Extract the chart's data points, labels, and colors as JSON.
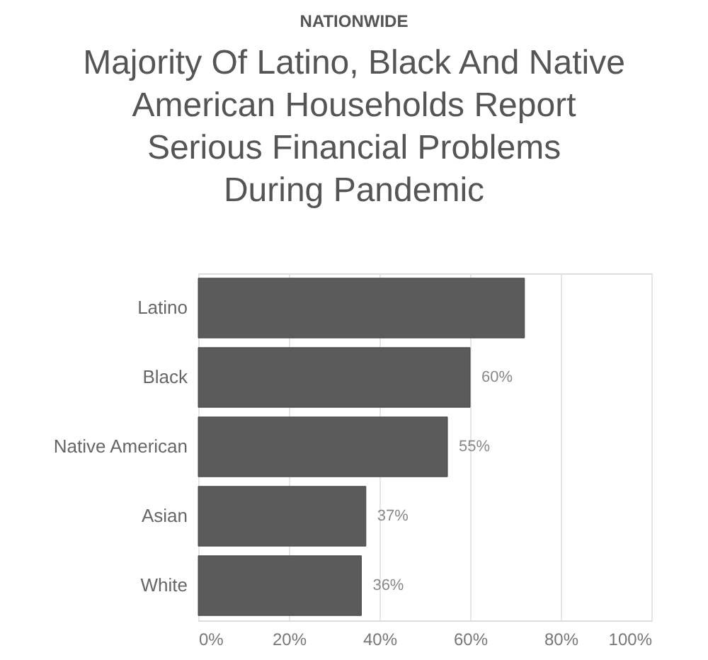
{
  "chart_data": {
    "type": "bar",
    "orientation": "horizontal",
    "title": "Majority Of Latino, Black And Native\nAmerican Households Report\nSerious Financial Problems\nDuring Pandemic",
    "annotations": [
      "NATIONWIDE"
    ],
    "categories": [
      "Latino",
      "Black",
      "Native American",
      "Asian",
      "White"
    ],
    "values": [
      72,
      60,
      55,
      37,
      36
    ],
    "value_labels": [
      null,
      "60%",
      "55%",
      "37%",
      "36%"
    ],
    "color": "#5b5b5b",
    "xlim": [
      0,
      100
    ],
    "xticks": [
      {
        "value": 0,
        "label": "0%"
      },
      {
        "value": 20,
        "label": "20%"
      },
      {
        "value": 40,
        "label": "40%"
      },
      {
        "value": 60,
        "label": "60%"
      },
      {
        "value": 80,
        "label": "80%"
      },
      {
        "value": 100,
        "label": "100%"
      }
    ],
    "grid": "x"
  }
}
